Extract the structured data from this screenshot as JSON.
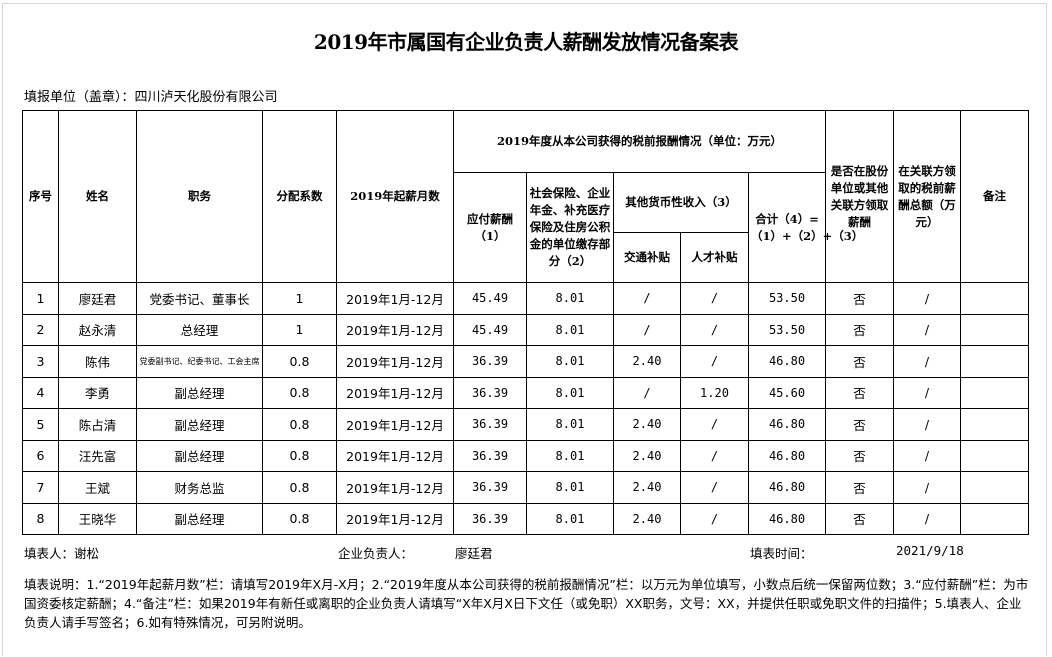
{
  "title": "2019年市属国有企业负责人薪酬发放情况备案表",
  "unit_label": "填报单位（盖章）：四川泸天化股份有限公司",
  "headers": {
    "seq": "序号",
    "name": "姓名",
    "position": "职务",
    "coefficient": "分配系数",
    "months": "2019年起薪月数",
    "group": "2019年度从本公司获得的税前报酬情况（单位：万元）",
    "salary": "应付薪酬（1）",
    "insurance": "社会保险、企业年金、补充医疗保险及住房公积金的单位缴存部分（2）",
    "other_income": "其他货币性收入（3）",
    "transport": "交通补贴",
    "talent": "人才补贴",
    "total": "合计（4）=（1）+（2）+（3）",
    "related_flag": "是否在股份单位或其他关联方领取薪酬",
    "related_amount": "在关联方领取的税前薪酬总额（万元）",
    "remark": "备注"
  },
  "rows": [
    {
      "seq": "1",
      "name": "廖廷君",
      "position": "党委书记、董事长",
      "coef": "1",
      "months": "2019年1月-12月",
      "salary": "45.49",
      "insurance": "8.01",
      "transport": "/",
      "talent": "/",
      "total": "53.50",
      "related_flag": "否",
      "related_amount": "/",
      "remark": ""
    },
    {
      "seq": "2",
      "name": "赵永清",
      "position": "总经理",
      "coef": "1",
      "months": "2019年1月-12月",
      "salary": "45.49",
      "insurance": "8.01",
      "transport": "/",
      "talent": "/",
      "total": "53.50",
      "related_flag": "否",
      "related_amount": "/",
      "remark": ""
    },
    {
      "seq": "3",
      "name": "陈伟",
      "position": "党委副书记、纪委书记、工会主席",
      "coef": "0.8",
      "months": "2019年1月-12月",
      "salary": "36.39",
      "insurance": "8.01",
      "transport": "2.40",
      "talent": "/",
      "total": "46.80",
      "related_flag": "否",
      "related_amount": "/",
      "remark": ""
    },
    {
      "seq": "4",
      "name": "李勇",
      "position": "副总经理",
      "coef": "0.8",
      "months": "2019年1月-12月",
      "salary": "36.39",
      "insurance": "8.01",
      "transport": "/",
      "talent": "1.20",
      "total": "45.60",
      "related_flag": "否",
      "related_amount": "/",
      "remark": ""
    },
    {
      "seq": "5",
      "name": "陈占清",
      "position": "副总经理",
      "coef": "0.8",
      "months": "2019年1月-12月",
      "salary": "36.39",
      "insurance": "8.01",
      "transport": "2.40",
      "talent": "/",
      "total": "46.80",
      "related_flag": "否",
      "related_amount": "/",
      "remark": ""
    },
    {
      "seq": "6",
      "name": "汪先富",
      "position": "副总经理",
      "coef": "0.8",
      "months": "2019年1月-12月",
      "salary": "36.39",
      "insurance": "8.01",
      "transport": "2.40",
      "talent": "/",
      "total": "46.80",
      "related_flag": "否",
      "related_amount": "/",
      "remark": ""
    },
    {
      "seq": "7",
      "name": "王斌",
      "position": "财务总监",
      "coef": "0.8",
      "months": "2019年1月-12月",
      "salary": "36.39",
      "insurance": "8.01",
      "transport": "2.40",
      "talent": "/",
      "total": "46.80",
      "related_flag": "否",
      "related_amount": "/",
      "remark": ""
    },
    {
      "seq": "8",
      "name": "王晓华",
      "position": "副总经理",
      "coef": "0.8",
      "months": "2019年1月-12月",
      "salary": "36.39",
      "insurance": "8.01",
      "transport": "2.40",
      "talent": "/",
      "total": "46.80",
      "related_flag": "否",
      "related_amount": "/",
      "remark": ""
    }
  ],
  "footer": {
    "filler": "填表人：谢松",
    "leader_label": "企业负责人：",
    "leader_name": "廖廷君",
    "date_label": "填表时间：",
    "date": "2021/9/18"
  },
  "note": "填表说明：1.“2019年起薪月数”栏：请填写2019年X月-X月；2.“2019年度从本公司获得的税前报酬情况”栏：以万元为单位填写，小数点后统一保留两位数；3.“应付薪酬”栏：为市国资委核定薪酬；4.“备注”栏：如果2019年有新任或离职的企业负责人请填写“X年X月X日下文任（或免职）XX职务，文号：XX，并提供任职或免职文件的扫描件；5.填表人、企业负责人请手写签名；6.如有特殊情况，可另附说明。"
}
